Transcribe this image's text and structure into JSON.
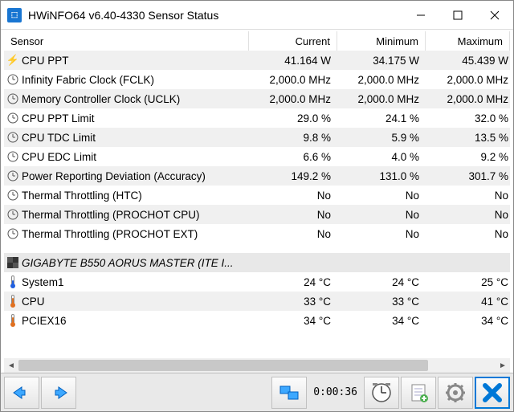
{
  "window": {
    "title": "HWiNFO64 v6.40-4330 Sensor Status"
  },
  "columns": {
    "sensor": "Sensor",
    "current": "Current",
    "minimum": "Minimum",
    "maximum": "Maximum"
  },
  "rows": [
    {
      "icon": "bolt",
      "name": "CPU PPT",
      "cur": "41.164 W",
      "min": "34.175 W",
      "max": "45.439 W",
      "alt": true
    },
    {
      "icon": "clock",
      "name": "Infinity Fabric Clock (FCLK)",
      "cur": "2,000.0 MHz",
      "min": "2,000.0 MHz",
      "max": "2,000.0 MHz",
      "alt": false
    },
    {
      "icon": "clock",
      "name": "Memory Controller Clock (UCLK)",
      "cur": "2,000.0 MHz",
      "min": "2,000.0 MHz",
      "max": "2,000.0 MHz",
      "alt": true
    },
    {
      "icon": "clock",
      "name": "CPU PPT Limit",
      "cur": "29.0 %",
      "min": "24.1 %",
      "max": "32.0 %",
      "alt": false
    },
    {
      "icon": "clock",
      "name": "CPU TDC Limit",
      "cur": "9.8 %",
      "min": "5.9 %",
      "max": "13.5 %",
      "alt": true
    },
    {
      "icon": "clock",
      "name": "CPU EDC Limit",
      "cur": "6.6 %",
      "min": "4.0 %",
      "max": "9.2 %",
      "alt": false
    },
    {
      "icon": "clock",
      "name": "Power Reporting Deviation (Accuracy)",
      "cur": "149.2 %",
      "min": "131.0 %",
      "max": "301.7 %",
      "alt": true
    },
    {
      "icon": "clock",
      "name": "Thermal Throttling (HTC)",
      "cur": "No",
      "min": "No",
      "max": "No",
      "alt": false
    },
    {
      "icon": "clock",
      "name": "Thermal Throttling (PROCHOT CPU)",
      "cur": "No",
      "min": "No",
      "max": "No",
      "alt": true
    },
    {
      "icon": "clock",
      "name": "Thermal Throttling (PROCHOT EXT)",
      "cur": "No",
      "min": "No",
      "max": "No",
      "alt": false
    }
  ],
  "section": {
    "name": "GIGABYTE B550 AORUS MASTER (ITE I..."
  },
  "rows2": [
    {
      "icon": "temp-b",
      "name": "System1",
      "cur": "24 °C",
      "min": "24 °C",
      "max": "25 °C",
      "alt": false
    },
    {
      "icon": "temp-o",
      "name": "CPU",
      "cur": "33 °C",
      "min": "33 °C",
      "max": "41 °C",
      "alt": true
    },
    {
      "icon": "temp-o",
      "name": "PCIEX16",
      "cur": "34 °C",
      "min": "34 °C",
      "max": "34 °C",
      "alt": false
    }
  ],
  "footer": {
    "elapsed": "0:00:36"
  },
  "colors": {
    "alt_bg": "#f0f0f0",
    "section_bg": "#e8e8e8",
    "toolbar_bg": "#e9e9e9",
    "accent": "#0078d7"
  }
}
